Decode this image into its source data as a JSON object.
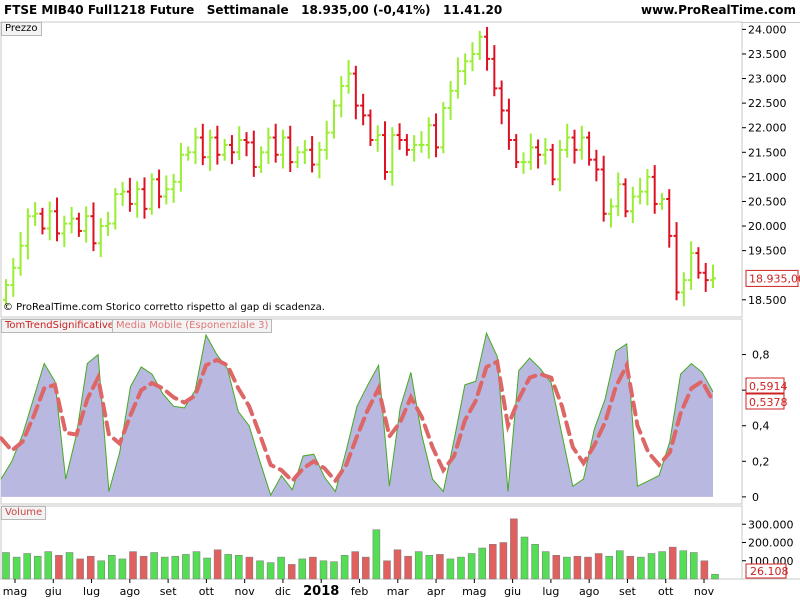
{
  "header": {
    "title": "FTSE MIB40 Full1218 Future   Settimanale   18.935,00 (-0,41%)   11.41.20",
    "brand": "www.ProRealTime.com"
  },
  "panels": {
    "price_label": "Prezzo",
    "indicator_label": "TomTrendSignificative",
    "indicator_ma_label": "Media Mobile (Esponenziale 3)",
    "volume_label": "Volume",
    "copyright": "© ProRealTime.com  Storico corretto rispetto al gap di scadenza."
  },
  "colors": {
    "up": "#99ee33",
    "down": "#dd1122",
    "ind_fill": "#b8b8e0",
    "ind_line": "#44aa22",
    "ma": "#dd6666",
    "vol_up": "#55dd55",
    "vol_down": "#e06060"
  },
  "chart_data": [
    {
      "type": "ohlc",
      "title": "FTSE MIB40 Full1218 Future",
      "ylim": [
        18150,
        24150
      ],
      "y_ticks": [
        "24.000",
        "23.500",
        "23.000",
        "22.500",
        "22.000",
        "21.500",
        "21.000",
        "20.500",
        "20.000",
        "19.500",
        "18.500"
      ],
      "last_value_label": "18.935,00",
      "x_ticks": [
        "mag",
        "giu",
        "lug",
        "ago",
        "set",
        "ott",
        "nov",
        "dic",
        "2018",
        "feb",
        "mar",
        "apr",
        "mag",
        "giu",
        "lug",
        "ago",
        "set",
        "ott",
        "nov"
      ],
      "close": [
        18800,
        19150,
        19600,
        20200,
        20250,
        19950,
        20300,
        19850,
        20050,
        20150,
        19900,
        20200,
        19650,
        20000,
        20050,
        20650,
        20700,
        20450,
        20750,
        20350,
        20950,
        20600,
        20750,
        20900,
        21450,
        21500,
        21800,
        21400,
        21800,
        21450,
        21650,
        21500,
        21750,
        21700,
        21200,
        21500,
        21800,
        21450,
        21800,
        21300,
        21500,
        21550,
        21250,
        21550,
        21900,
        22450,
        22850,
        23100,
        22450,
        22250,
        21750,
        21850,
        21100,
        21850,
        21750,
        21550,
        21650,
        21650,
        22050,
        21600,
        22400,
        22750,
        23150,
        23350,
        23500,
        23850,
        23400,
        22800,
        22350,
        21750,
        21300,
        21300,
        21600,
        21450,
        21550,
        20950,
        21550,
        21800,
        21550,
        21800,
        21350,
        21150,
        20250,
        20400,
        20850,
        20300,
        20600,
        20700,
        21000,
        20450,
        20550,
        19800,
        18650,
        18900,
        19450,
        19050,
        18900,
        18935
      ]
    },
    {
      "type": "area",
      "title": "TomTrendSignificative",
      "ylim": [
        -0.04,
        1.0
      ],
      "y_ticks": [
        "0,8",
        "0,6",
        "0,4",
        "0,2",
        "0"
      ],
      "value_labels": [
        "0,5914",
        "0,5378"
      ],
      "series": [
        {
          "name": "TomTrendSignificative",
          "values": [
            0.1,
            0.2,
            0.35,
            0.55,
            0.75,
            0.65,
            0.1,
            0.35,
            0.75,
            0.8,
            0.03,
            0.25,
            0.62,
            0.73,
            0.69,
            0.58,
            0.51,
            0.5,
            0.6,
            0.91,
            0.8,
            0.72,
            0.48,
            0.4,
            0.2,
            0.01,
            0.12,
            0.04,
            0.23,
            0.24,
            0.11,
            0.03,
            0.26,
            0.51,
            0.63,
            0.74,
            0.06,
            0.5,
            0.7,
            0.35,
            0.1,
            0.03,
            0.32,
            0.63,
            0.65,
            0.92,
            0.79,
            0.03,
            0.71,
            0.78,
            0.72,
            0.64,
            0.35,
            0.06,
            0.1,
            0.38,
            0.55,
            0.82,
            0.86,
            0.06,
            0.09,
            0.12,
            0.31,
            0.69,
            0.75,
            0.7,
            0.5914
          ]
        },
        {
          "name": "Media Mobile (Esponenziale 3)",
          "values": [
            0.33,
            0.26,
            0.31,
            0.45,
            0.61,
            0.63,
            0.36,
            0.35,
            0.55,
            0.67,
            0.35,
            0.3,
            0.46,
            0.6,
            0.64,
            0.61,
            0.56,
            0.53,
            0.57,
            0.74,
            0.77,
            0.74,
            0.61,
            0.51,
            0.35,
            0.18,
            0.15,
            0.09,
            0.16,
            0.2,
            0.16,
            0.09,
            0.18,
            0.34,
            0.49,
            0.61,
            0.34,
            0.42,
            0.56,
            0.45,
            0.28,
            0.15,
            0.23,
            0.43,
            0.54,
            0.73,
            0.76,
            0.4,
            0.55,
            0.67,
            0.69,
            0.67,
            0.51,
            0.28,
            0.19,
            0.29,
            0.42,
            0.62,
            0.74,
            0.4,
            0.25,
            0.18,
            0.25,
            0.47,
            0.61,
            0.65,
            0.5378
          ]
        }
      ]
    },
    {
      "type": "bar",
      "title": "Volume",
      "ylim": [
        0,
        400000
      ],
      "y_ticks": [
        "300.000",
        "200.000",
        "100.000"
      ],
      "last_value_label": "26.108",
      "values": [
        145000,
        120000,
        140000,
        125000,
        150000,
        130000,
        145000,
        110000,
        125000,
        100000,
        130000,
        110000,
        150000,
        125000,
        145000,
        120000,
        125000,
        135000,
        150000,
        115000,
        160000,
        135000,
        130000,
        120000,
        100000,
        90000,
        120000,
        80000,
        110000,
        120000,
        100000,
        95000,
        130000,
        150000,
        120000,
        270000,
        100000,
        160000,
        125000,
        150000,
        130000,
        135000,
        110000,
        120000,
        140000,
        170000,
        190000,
        200000,
        330000,
        230000,
        190000,
        150000,
        130000,
        120000,
        125000,
        120000,
        140000,
        125000,
        155000,
        125000,
        120000,
        140000,
        150000,
        175000,
        155000,
        145000,
        100000,
        26108
      ]
    }
  ]
}
